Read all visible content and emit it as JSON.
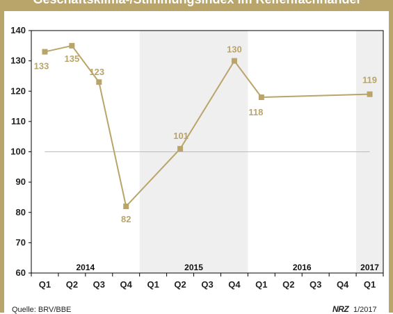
{
  "header": {
    "title": "Geschäftsklima-/Stimmungsindex im Reifenfachhandel"
  },
  "footer": {
    "source": "Quelle: BRV/BBE",
    "logo": "NRZ",
    "issue": "1/2017"
  },
  "colors": {
    "accent": "#b9a46a",
    "shade": "#efefef",
    "reference_line": "#bbbbbb",
    "axis": "#000000"
  },
  "chart_data": {
    "type": "line",
    "title": "Geschäftsklima-/Stimmungsindex im Reifenfachhandel",
    "xlabel": "",
    "ylabel": "",
    "categories": [
      "Q1",
      "Q2",
      "Q3",
      "Q4",
      "Q1",
      "Q2",
      "Q3",
      "Q4",
      "Q1",
      "Q2",
      "Q3",
      "Q4",
      "Q1"
    ],
    "years": [
      {
        "label": "2014",
        "start": 0,
        "end": 3,
        "shaded": false
      },
      {
        "label": "2015",
        "start": 4,
        "end": 7,
        "shaded": true
      },
      {
        "label": "2016",
        "start": 8,
        "end": 11,
        "shaded": false
      },
      {
        "label": "2017",
        "start": 12,
        "end": 12,
        "shaded": true
      }
    ],
    "series": [
      {
        "points": [
          {
            "index": 0,
            "value": 133,
            "label": "133"
          },
          {
            "index": 1,
            "value": 135,
            "label": "135"
          },
          {
            "index": 2,
            "value": 123,
            "label": "123"
          },
          {
            "index": 3,
            "value": 82,
            "label": "82"
          },
          {
            "index": 5,
            "value": 101,
            "label": "101"
          },
          {
            "index": 7,
            "value": 130,
            "label": "130"
          },
          {
            "index": 8,
            "value": 118,
            "label": "118"
          },
          {
            "index": 12,
            "value": 119,
            "label": "119"
          }
        ]
      }
    ],
    "reference_value": 100,
    "ylim": [
      60,
      140
    ],
    "yticks": [
      60,
      70,
      80,
      90,
      100,
      110,
      120,
      130,
      140
    ],
    "grid": false,
    "legend": "none"
  }
}
